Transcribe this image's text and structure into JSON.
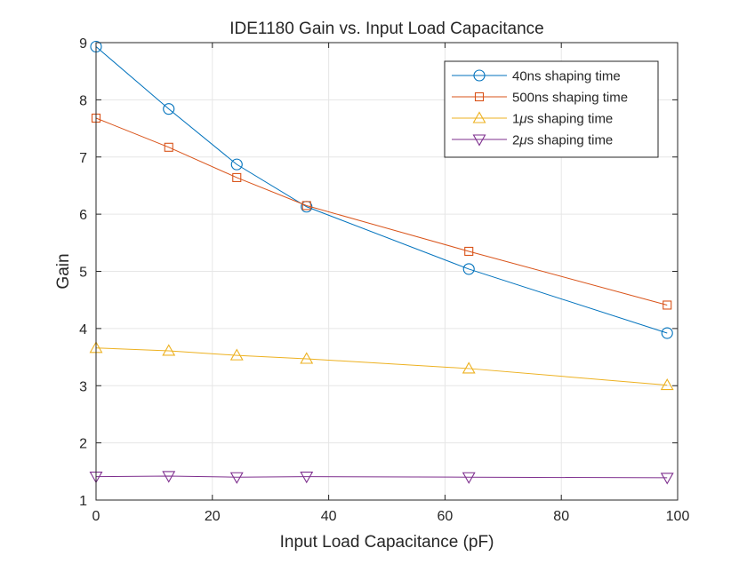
{
  "chart_data": {
    "type": "line",
    "title": "IDE1180 Gain vs. Input Load Capacitance",
    "xlabel": "Input Load Capacitance (pF)",
    "ylabel": "Gain",
    "xlim": [
      0,
      100
    ],
    "ylim": [
      1,
      9
    ],
    "xticks": [
      0,
      20,
      40,
      60,
      80,
      100
    ],
    "yticks": [
      1,
      2,
      3,
      4,
      5,
      6,
      7,
      8,
      9
    ],
    "grid": true,
    "legend_position": "top-right",
    "x": [
      0,
      12.5,
      24.2,
      36.2,
      64.1,
      98.2
    ],
    "series": [
      {
        "name": "40ns shaping time",
        "legend_prefix": "40ns",
        "legend_suffix": " shaping time",
        "marker": "circle",
        "color": "#0072BD",
        "values": [
          8.93,
          7.84,
          6.87,
          6.13,
          5.04,
          3.92
        ]
      },
      {
        "name": "500ns shaping time",
        "legend_prefix": "500ns",
        "legend_suffix": " shaping time",
        "marker": "square",
        "color": "#D95319",
        "values": [
          7.68,
          7.17,
          6.64,
          6.15,
          5.35,
          4.41
        ]
      },
      {
        "name": "1μs shaping time",
        "legend_prefix": "1",
        "legend_mu": "μ",
        "legend_suffix": "s shaping time",
        "marker": "triangle-up",
        "color": "#EDB120",
        "values": [
          3.66,
          3.61,
          3.53,
          3.47,
          3.3,
          3.01
        ]
      },
      {
        "name": "2μs shaping time",
        "legend_prefix": "2",
        "legend_mu": "μ",
        "legend_suffix": "s shaping time",
        "marker": "triangle-down",
        "color": "#7E2F8E",
        "values": [
          1.41,
          1.42,
          1.4,
          1.41,
          1.4,
          1.39
        ]
      }
    ]
  }
}
